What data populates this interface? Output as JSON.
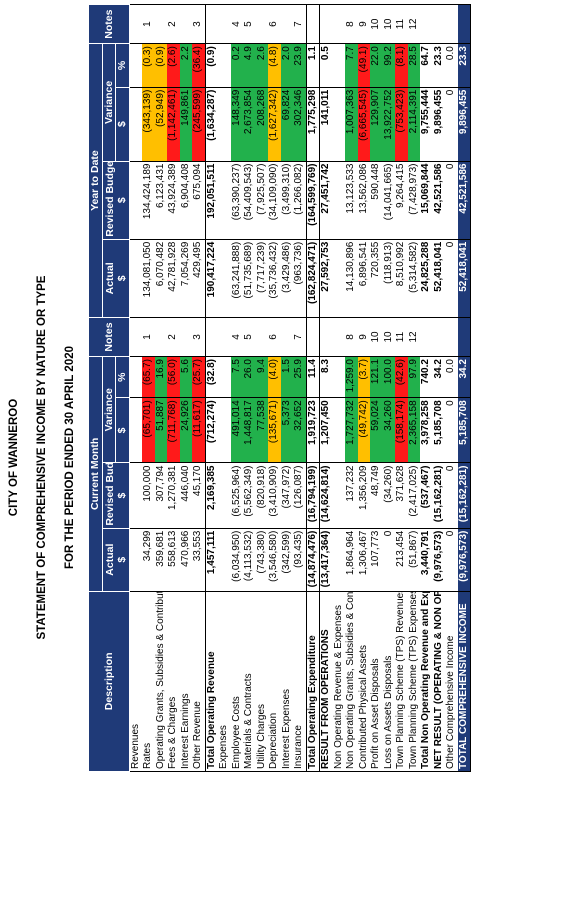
{
  "title": {
    "line1": "CITY OF WANNEROO",
    "line2": "STATEMENT OF COMPREHENSIVE INCOME BY NATURE OR TYPE",
    "line3": "FOR THE PERIOD ENDED 30 APRIL 2020"
  },
  "colors": {
    "header_bg": "#1f3a78",
    "red": "#ff1a1a",
    "orange": "#ffbf00",
    "green": "#22b14c"
  },
  "headers": {
    "description": "Description",
    "current_month": "Current Month",
    "year_to_date": "Year to Date",
    "actual": "Actual",
    "revised_budget": "Revised Budget",
    "variance": "Variance",
    "notes": "Notes",
    "dollar": "$",
    "percent": "%"
  },
  "rows": [
    {
      "desc": "Revenues",
      "type": "section"
    },
    {
      "desc": "Rates",
      "cm_actual": "34,299",
      "cm_budget": "100,000",
      "cm_var": "(65,701)",
      "cm_pct": "(65.7)",
      "cm_color": "red",
      "note1": "1",
      "ytd_actual": "134,081,050",
      "ytd_budget": "134,424,189",
      "ytd_var": "(343,139)",
      "ytd_pct": "(0.3)",
      "ytd_color": "orange",
      "note2": "1"
    },
    {
      "desc": "Operating Grants, Subsidies & Contributions",
      "cm_actual": "359,681",
      "cm_budget": "307,794",
      "cm_var": "51,887",
      "cm_pct": "16.9",
      "cm_color": "green",
      "note1": "",
      "ytd_actual": "6,070,482",
      "ytd_budget": "6,123,431",
      "ytd_var": "(52,949)",
      "ytd_pct": "(0.9)",
      "ytd_color": "orange",
      "note2": ""
    },
    {
      "desc": "Fees & Charges",
      "cm_actual": "558,613",
      "cm_budget": "1,270,381",
      "cm_var": "(711,768)",
      "cm_pct": "(56.0)",
      "cm_color": "red",
      "note1": "2",
      "ytd_actual": "42,781,928",
      "ytd_budget": "43,924,389",
      "ytd_var": "(1,142,461)",
      "ytd_pct": "(2.6)",
      "ytd_color": "red",
      "note2": "2"
    },
    {
      "desc": "Interest Earnings",
      "cm_actual": "470,966",
      "cm_budget": "446,040",
      "cm_var": "24,926",
      "cm_pct": "5.6",
      "cm_color": "green",
      "note1": "",
      "ytd_actual": "7,054,269",
      "ytd_budget": "6,904,408",
      "ytd_var": "149,861",
      "ytd_pct": "2.2",
      "ytd_color": "green",
      "note2": ""
    },
    {
      "desc": "Other Revenue",
      "cm_actual": "33,553",
      "cm_budget": "45,170",
      "cm_var": "(11,617)",
      "cm_pct": "(25.7)",
      "cm_color": "red",
      "note1": "3",
      "ytd_actual": "429,495",
      "ytd_budget": "675,094",
      "ytd_var": "(245,599)",
      "ytd_pct": "(36.4)",
      "ytd_color": "red",
      "note2": "3"
    },
    {
      "desc": "Total Operating Revenue",
      "type": "total",
      "cm_actual": "1,457,111",
      "cm_budget": "2,169,385",
      "cm_var": "(712,274)",
      "cm_pct": "(32.8)",
      "note1": "",
      "ytd_actual": "190,417,224",
      "ytd_budget": "192,051,511",
      "ytd_var": "(1,634,287)",
      "ytd_pct": "(0.9)",
      "note2": ""
    },
    {
      "desc": "Expenses",
      "type": "section"
    },
    {
      "desc": "Employee Costs",
      "cm_actual": "(6,034,950)",
      "cm_budget": "(6,525,964)",
      "cm_var": "491,014",
      "cm_pct": "7.5",
      "cm_color": "green",
      "note1": "4",
      "ytd_actual": "(63,241,888)",
      "ytd_budget": "(63,390,237)",
      "ytd_var": "148,349",
      "ytd_pct": "0.2",
      "ytd_color": "green",
      "note2": "4"
    },
    {
      "desc": "Materials & Contracts",
      "cm_actual": "(4,113,532)",
      "cm_budget": "(5,562,349)",
      "cm_var": "1,448,817",
      "cm_pct": "26.0",
      "cm_color": "green",
      "note1": "5",
      "ytd_actual": "(51,735,689)",
      "ytd_budget": "(54,409,543)",
      "ytd_var": "2,673,854",
      "ytd_pct": "4.9",
      "ytd_color": "green",
      "note2": "5"
    },
    {
      "desc": "Utility Charges",
      "cm_actual": "(743,380)",
      "cm_budget": "(820,918)",
      "cm_var": "77,538",
      "cm_pct": "9.4",
      "cm_color": "green",
      "note1": "",
      "ytd_actual": "(7,717,239)",
      "ytd_budget": "(7,925,507)",
      "ytd_var": "208,268",
      "ytd_pct": "2.6",
      "ytd_color": "green",
      "note2": ""
    },
    {
      "desc": "Depreciation",
      "cm_actual": "(3,546,580)",
      "cm_budget": "(3,410,909)",
      "cm_var": "(135,671)",
      "cm_pct": "(4.0)",
      "cm_color": "orange",
      "note1": "6",
      "ytd_actual": "(35,736,432)",
      "ytd_budget": "(34,109,090)",
      "ytd_var": "(1,627,342)",
      "ytd_pct": "(4.8)",
      "ytd_color": "orange",
      "note2": "6"
    },
    {
      "desc": "Interest Expenses",
      "cm_actual": "(342,599)",
      "cm_budget": "(347,972)",
      "cm_var": "5,373",
      "cm_pct": "1.5",
      "cm_color": "green",
      "note1": "",
      "ytd_actual": "(3,429,486)",
      "ytd_budget": "(3,499,310)",
      "ytd_var": "69,824",
      "ytd_pct": "2.0",
      "ytd_color": "green",
      "note2": ""
    },
    {
      "desc": "Insurance",
      "cm_actual": "(93,435)",
      "cm_budget": "(126,087)",
      "cm_var": "32,652",
      "cm_pct": "25.9",
      "cm_color": "green",
      "note1": "7",
      "ytd_actual": "(963,736)",
      "ytd_budget": "(1,266,082)",
      "ytd_var": "302,346",
      "ytd_pct": "23.9",
      "ytd_color": "green",
      "note2": "7"
    },
    {
      "desc": "Total Operating Expenditure",
      "type": "total",
      "cm_actual": "(14,874,476)",
      "cm_budget": "(16,794,199)",
      "cm_var": "1,919,723",
      "cm_pct": "11.4",
      "note1": "",
      "ytd_actual": "(162,824,471)",
      "ytd_budget": "(164,599,769)",
      "ytd_var": "1,775,298",
      "ytd_pct": "1.1",
      "note2": ""
    },
    {
      "desc": "RESULT FROM OPERATIONS",
      "type": "strong",
      "cm_actual": "(13,417,364)",
      "cm_budget": "(14,624,814)",
      "cm_var": "1,207,450",
      "cm_pct": "8.3",
      "note1": "",
      "ytd_actual": "27,592,753",
      "ytd_budget": "27,451,742",
      "ytd_var": "141,011",
      "ytd_pct": "0.5",
      "note2": ""
    },
    {
      "desc": "Non Operating Revenue & Expenses",
      "type": "section"
    },
    {
      "desc": "Non Operating Grants, Subsidies & Contributions",
      "cm_actual": "1,864,964",
      "cm_budget": "137,232",
      "cm_var": "1,727,732",
      "cm_pct": "1,259.0",
      "cm_color": "green",
      "note1": "8",
      "ytd_actual": "14,130,896",
      "ytd_budget": "13,123,533",
      "ytd_var": "1,007,363",
      "ytd_pct": "7.7",
      "ytd_color": "green",
      "note2": "8"
    },
    {
      "desc": "Contributed Physical Assets",
      "cm_actual": "1,306,467",
      "cm_budget": "1,356,209",
      "cm_var": "(49,742)",
      "cm_pct": "(3.7)",
      "cm_color": "orange",
      "note1": "9",
      "ytd_actual": "6,896,541",
      "ytd_budget": "13,562,086",
      "ytd_var": "(6,665,545)",
      "ytd_pct": "(49.1)",
      "ytd_color": "red",
      "note2": "9"
    },
    {
      "desc": "Profit on Asset Disposals",
      "cm_actual": "107,773",
      "cm_budget": "48,749",
      "cm_var": "59,024",
      "cm_pct": "121.1",
      "cm_color": "green",
      "note1": "10",
      "ytd_actual": "720,355",
      "ytd_budget": "590,448",
      "ytd_var": "129,907",
      "ytd_pct": "22.0",
      "ytd_color": "green",
      "note2": "10"
    },
    {
      "desc": "Loss on Assets Disposals",
      "cm_actual": "0",
      "cm_budget": "(34,260)",
      "cm_var": "34,260",
      "cm_pct": "100.0",
      "cm_color": "green",
      "note1": "10",
      "ytd_actual": "(118,913)",
      "ytd_budget": "(14,041,665)",
      "ytd_var": "13,922,752",
      "ytd_pct": "99.2",
      "ytd_color": "green",
      "note2": "10"
    },
    {
      "desc": "Town Planning Scheme (TPS) Revenues",
      "cm_actual": "213,454",
      "cm_budget": "371,628",
      "cm_var": "(158,174)",
      "cm_pct": "(42.6)",
      "cm_color": "red",
      "note1": "11",
      "ytd_actual": "8,510,992",
      "ytd_budget": "9,264,415",
      "ytd_var": "(753,423)",
      "ytd_pct": "(8.1)",
      "ytd_color": "red",
      "note2": "11"
    },
    {
      "desc": "Town Planning Scheme (TPS) Expenses",
      "cm_actual": "(51,867)",
      "cm_budget": "(2,417,025)",
      "cm_var": "2,365,158",
      "cm_pct": "97.9",
      "cm_color": "green",
      "note1": "12",
      "ytd_actual": "(5,314,582)",
      "ytd_budget": "(7,428,973)",
      "ytd_var": "2,114,391",
      "ytd_pct": "28.5",
      "ytd_color": "green",
      "note2": "12"
    },
    {
      "desc": "Total Non Operating Revenue and Expenses",
      "type": "strongplain",
      "cm_actual": "3,440,791",
      "cm_budget": "(537,467)",
      "cm_var": "3,978,258",
      "cm_pct": "740.2",
      "note1": "",
      "ytd_actual": "24,825,288",
      "ytd_budget": "15,069,844",
      "ytd_var": "9,755,444",
      "ytd_pct": "64.7",
      "note2": ""
    },
    {
      "desc": "NET RESULT (OPERATING & NON OPERATING)",
      "type": "strongplain",
      "cm_actual": "(9,976,573)",
      "cm_budget": "(15,162,281)",
      "cm_var": "5,185,708",
      "cm_pct": "34.2",
      "note1": "",
      "ytd_actual": "52,418,041",
      "ytd_budget": "42,521,586",
      "ytd_var": "9,896,455",
      "ytd_pct": "23.3",
      "note2": ""
    },
    {
      "desc": "Other Comprehensive Income",
      "type": "plain",
      "cm_actual": "0",
      "cm_budget": "0",
      "cm_var": "0",
      "cm_pct": "0.0",
      "note1": "",
      "ytd_actual": "0",
      "ytd_budget": "0",
      "ytd_var": "0",
      "ytd_pct": "0.0",
      "note2": ""
    },
    {
      "desc": "TOTAL COMPREHENSIVE INCOME",
      "type": "blue",
      "cm_actual": "(9,976,573)",
      "cm_budget": "(15,162,281)",
      "cm_var": "5,185,708",
      "cm_pct": "34.2",
      "note1": "",
      "ytd_actual": "52,418,041",
      "ytd_budget": "42,521,586",
      "ytd_var": "9,896,455",
      "ytd_pct": "23.3",
      "note2": ""
    }
  ]
}
